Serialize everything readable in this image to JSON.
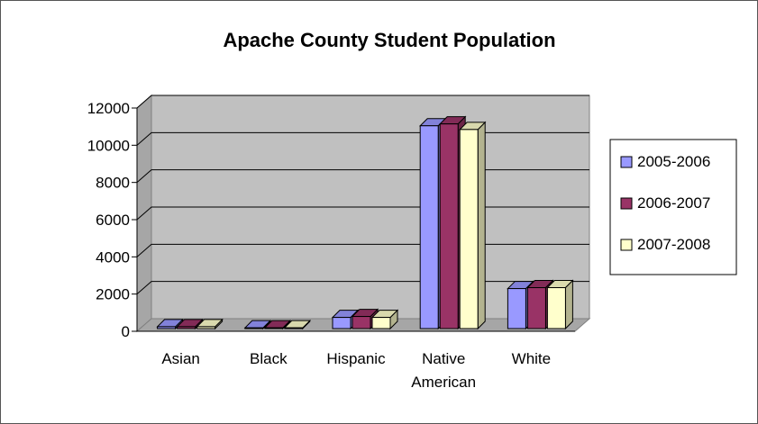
{
  "chart_data": {
    "type": "bar",
    "title": "Apache County Student Population",
    "xlabel": "",
    "ylabel": "",
    "categories": [
      "Asian",
      "Black",
      "Hispanic",
      "Native American",
      "White"
    ],
    "series": [
      {
        "name": "2005-2006",
        "values": [
          100,
          40,
          600,
          10900,
          2150
        ],
        "color": "#9999ff"
      },
      {
        "name": "2006-2007",
        "values": [
          100,
          40,
          650,
          11000,
          2200
        ],
        "color": "#993366"
      },
      {
        "name": "2007-2008",
        "values": [
          100,
          40,
          600,
          10700,
          2200
        ],
        "color": "#ffffcc"
      }
    ],
    "ylim": [
      0,
      12000
    ],
    "yticks": [
      0,
      2000,
      4000,
      6000,
      8000,
      10000,
      12000
    ],
    "grid": true,
    "legend_position": "right",
    "style": "3d-clustered-column",
    "plot_wall_color": "#c0c0c0"
  }
}
